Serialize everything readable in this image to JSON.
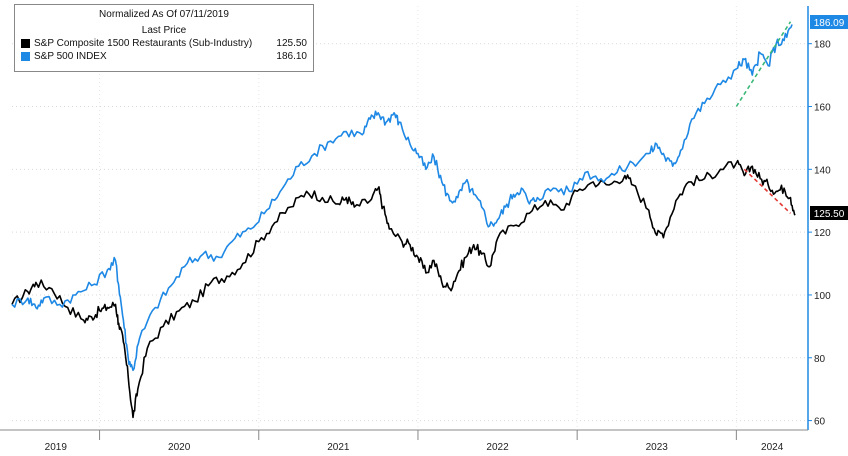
{
  "legend": {
    "header_line1": "Normalized As Of 07/11/2019",
    "header_line2": "Last Price",
    "series": [
      {
        "name": "S&P Composite 1500 Restaurants (Sub-Industry)",
        "value": "125.50",
        "color": "#000000"
      },
      {
        "name": "S&P 500 INDEX",
        "value": "186.10",
        "color": "#1e88e5"
      }
    ]
  },
  "badges": {
    "sp500_last": "186.09",
    "restaurants_last": "125.50"
  },
  "chart_data": {
    "type": "line",
    "x_tick_labels": [
      "2019",
      "2020",
      "2021",
      "2022",
      "2023",
      "2024"
    ],
    "y_ticks": [
      60,
      80,
      100,
      120,
      140,
      160,
      180
    ],
    "ylim": [
      57,
      192
    ],
    "xlim": [
      2019.45,
      2024.45
    ],
    "grid": true,
    "legend_position": "top-left",
    "series": [
      {
        "name": "S&P Composite 1500 Restaurants (Sub-Industry)",
        "color": "#000000",
        "points": [
          [
            2019.45,
            97
          ],
          [
            2019.55,
            101
          ],
          [
            2019.6,
            104
          ],
          [
            2019.7,
            102
          ],
          [
            2019.8,
            96
          ],
          [
            2019.9,
            92
          ],
          [
            2019.95,
            93
          ],
          [
            2020.0,
            95
          ],
          [
            2020.05,
            96
          ],
          [
            2020.1,
            97
          ],
          [
            2020.12,
            91
          ],
          [
            2020.15,
            85
          ],
          [
            2020.18,
            74
          ],
          [
            2020.21,
            61
          ],
          [
            2020.24,
            70
          ],
          [
            2020.3,
            83
          ],
          [
            2020.4,
            90
          ],
          [
            2020.5,
            95
          ],
          [
            2020.6,
            98
          ],
          [
            2020.7,
            104
          ],
          [
            2020.8,
            106
          ],
          [
            2020.9,
            110
          ],
          [
            2021.0,
            117
          ],
          [
            2021.1,
            123
          ],
          [
            2021.2,
            128
          ],
          [
            2021.3,
            133
          ],
          [
            2021.4,
            131
          ],
          [
            2021.5,
            129
          ],
          [
            2021.55,
            131
          ],
          [
            2021.6,
            128
          ],
          [
            2021.7,
            130
          ],
          [
            2021.75,
            134
          ],
          [
            2021.78,
            128
          ],
          [
            2021.82,
            121
          ],
          [
            2021.9,
            117
          ],
          [
            2021.95,
            116
          ],
          [
            2022.0,
            112
          ],
          [
            2022.05,
            107
          ],
          [
            2022.1,
            111
          ],
          [
            2022.15,
            104
          ],
          [
            2022.2,
            102
          ],
          [
            2022.25,
            107
          ],
          [
            2022.3,
            112
          ],
          [
            2022.35,
            116
          ],
          [
            2022.4,
            113
          ],
          [
            2022.45,
            109
          ],
          [
            2022.5,
            118
          ],
          [
            2022.6,
            122
          ],
          [
            2022.7,
            126
          ],
          [
            2022.8,
            130
          ],
          [
            2022.9,
            127
          ],
          [
            2023.0,
            133
          ],
          [
            2023.1,
            136
          ],
          [
            2023.2,
            135
          ],
          [
            2023.3,
            138
          ],
          [
            2023.35,
            135
          ],
          [
            2023.45,
            127
          ],
          [
            2023.5,
            119
          ],
          [
            2023.55,
            120
          ],
          [
            2023.62,
            130
          ],
          [
            2023.7,
            136
          ],
          [
            2023.8,
            137
          ],
          [
            2023.9,
            140
          ],
          [
            2024.0,
            142
          ],
          [
            2024.05,
            138
          ],
          [
            2024.1,
            141
          ],
          [
            2024.15,
            137
          ],
          [
            2024.2,
            135
          ],
          [
            2024.25,
            133
          ],
          [
            2024.3,
            134
          ],
          [
            2024.34,
            131
          ],
          [
            2024.37,
            125.5
          ]
        ]
      },
      {
        "name": "S&P 500 INDEX",
        "color": "#1e88e5",
        "points": [
          [
            2019.45,
            97
          ],
          [
            2019.55,
            99
          ],
          [
            2019.6,
            96
          ],
          [
            2019.65,
            99
          ],
          [
            2019.75,
            97
          ],
          [
            2019.85,
            100
          ],
          [
            2019.95,
            103
          ],
          [
            2020.05,
            108
          ],
          [
            2020.1,
            111
          ],
          [
            2020.12,
            103
          ],
          [
            2020.15,
            92
          ],
          [
            2020.18,
            80
          ],
          [
            2020.21,
            76
          ],
          [
            2020.25,
            86
          ],
          [
            2020.35,
            96
          ],
          [
            2020.45,
            103
          ],
          [
            2020.55,
            110
          ],
          [
            2020.65,
            113
          ],
          [
            2020.75,
            112
          ],
          [
            2020.85,
            118
          ],
          [
            2020.95,
            121
          ],
          [
            2021.05,
            127
          ],
          [
            2021.15,
            134
          ],
          [
            2021.25,
            141
          ],
          [
            2021.35,
            145
          ],
          [
            2021.45,
            149
          ],
          [
            2021.55,
            152
          ],
          [
            2021.65,
            151
          ],
          [
            2021.7,
            156
          ],
          [
            2021.75,
            158
          ],
          [
            2021.8,
            155
          ],
          [
            2021.85,
            158
          ],
          [
            2021.88,
            155
          ],
          [
            2021.95,
            148
          ],
          [
            2022.0,
            145
          ],
          [
            2022.05,
            140
          ],
          [
            2022.1,
            144
          ],
          [
            2022.15,
            136
          ],
          [
            2022.2,
            130
          ],
          [
            2022.25,
            131
          ],
          [
            2022.3,
            136
          ],
          [
            2022.35,
            132
          ],
          [
            2022.4,
            128
          ],
          [
            2022.45,
            122
          ],
          [
            2022.5,
            124
          ],
          [
            2022.55,
            128
          ],
          [
            2022.6,
            132
          ],
          [
            2022.65,
            134
          ],
          [
            2022.7,
            129
          ],
          [
            2022.75,
            131
          ],
          [
            2022.85,
            134
          ],
          [
            2022.95,
            133
          ],
          [
            2023.05,
            139
          ],
          [
            2023.15,
            137
          ],
          [
            2023.25,
            139
          ],
          [
            2023.35,
            142
          ],
          [
            2023.45,
            145
          ],
          [
            2023.5,
            148
          ],
          [
            2023.55,
            144
          ],
          [
            2023.6,
            141
          ],
          [
            2023.65,
            146
          ],
          [
            2023.72,
            156
          ],
          [
            2023.8,
            161
          ],
          [
            2023.9,
            167
          ],
          [
            2024.0,
            172
          ],
          [
            2024.05,
            175
          ],
          [
            2024.1,
            170
          ],
          [
            2024.15,
            177
          ],
          [
            2024.2,
            173
          ],
          [
            2024.25,
            180
          ],
          [
            2024.3,
            181
          ],
          [
            2024.35,
            186.1
          ]
        ]
      }
    ],
    "annotations": [
      {
        "type": "trend-arrow",
        "color": "#3cb878",
        "style": "dashed",
        "from": [
          2024.0,
          160
        ],
        "to": [
          2024.34,
          187
        ]
      },
      {
        "type": "trend-arrow",
        "color": "#e53935",
        "style": "dashed",
        "from": [
          2024.05,
          140
        ],
        "to": [
          2024.34,
          126
        ]
      }
    ]
  }
}
